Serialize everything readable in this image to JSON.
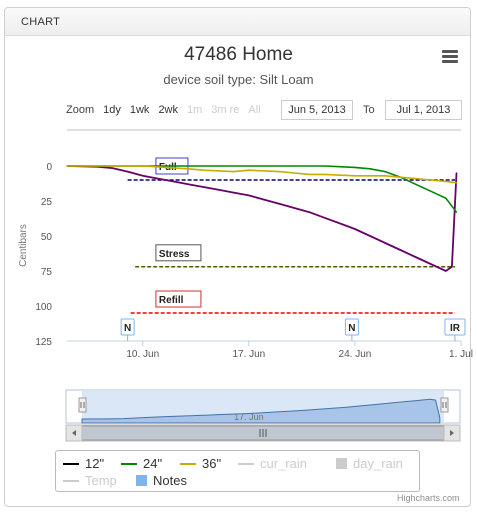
{
  "panel": {
    "header": "CHART"
  },
  "title": "47486 Home",
  "subtitle": "device soil type: Silt Loam",
  "range_selector": {
    "zoom_label": "Zoom",
    "buttons": [
      {
        "label": "1dy",
        "enabled": true
      },
      {
        "label": "1wk",
        "enabled": true
      },
      {
        "label": "2wk",
        "enabled": true
      },
      {
        "label": "1m",
        "enabled": false
      },
      {
        "label": "3m re",
        "enabled": false
      },
      {
        "label": "All",
        "enabled": false
      }
    ],
    "from_date": "Jun 5, 2013",
    "to_label": "To",
    "to_date": "Jul 1, 2013"
  },
  "chart_data": {
    "type": "line",
    "ylabel": "Centibars",
    "y_reversed": true,
    "ylim": [
      125,
      0
    ],
    "yticks": [
      0,
      25,
      50,
      75,
      100,
      125
    ],
    "xlim": [
      5,
      31
    ],
    "x_tick_positions": [
      10,
      17,
      24,
      31
    ],
    "xtick_labels": [
      "10. Jun",
      "17. Jun",
      "24. Jun",
      "1. Jul"
    ],
    "x_unit": "June 2013 day",
    "series": [
      {
        "name": "12\"",
        "color": "#660066",
        "x": [
          5,
          7,
          8,
          9,
          10,
          11,
          12,
          13,
          14,
          15,
          16,
          17,
          18,
          19,
          20,
          21,
          22,
          23,
          24,
          25,
          26,
          27,
          28,
          29,
          30,
          30.4,
          30.7
        ],
        "values": [
          0,
          0.5,
          1.5,
          4,
          7,
          9,
          11,
          13,
          15,
          17,
          19,
          21,
          24,
          27,
          30,
          33,
          37,
          41,
          45,
          50,
          55,
          60,
          65,
          70,
          75,
          72,
          5
        ]
      },
      {
        "name": "24\"",
        "color": "#008800",
        "x": [
          5,
          10,
          15,
          20,
          22,
          23,
          24,
          25,
          26,
          27,
          28,
          29,
          30,
          30.7
        ],
        "values": [
          0,
          0,
          0,
          0,
          0,
          0.5,
          1,
          2,
          4,
          8,
          13,
          18,
          23,
          33
        ]
      },
      {
        "name": "36\"",
        "color": "#ccaa00",
        "x": [
          5,
          10,
          13,
          14,
          16,
          17,
          19,
          20,
          21,
          22,
          24,
          26,
          27,
          28,
          29,
          30,
          30.7
        ],
        "values": [
          0,
          0,
          2,
          3,
          4,
          3,
          4,
          5,
          6,
          6,
          7,
          7,
          8,
          9,
          10,
          11,
          12
        ]
      }
    ],
    "plot_bands": [
      {
        "label": "Full",
        "value": 10,
        "color": "#000080",
        "box_color": "#4040cc"
      },
      {
        "label": "Stress",
        "value": 72,
        "color": "#555500",
        "box_color": "#555555"
      },
      {
        "label": "Refill",
        "value": 105,
        "color": "#ee0000",
        "box_color": "#cc3333"
      }
    ],
    "flags": [
      {
        "label": "N",
        "x": 9
      },
      {
        "label": "N",
        "x": 23.8
      },
      {
        "label": "IR",
        "x": 30.6
      }
    ],
    "navigator": {
      "x_label": "17. Jun"
    },
    "legend_placement": "bottom",
    "legend": [
      {
        "name": "12\"",
        "symbol": "line",
        "color": "#660066",
        "visible": true
      },
      {
        "name": "24\"",
        "symbol": "line",
        "color": "#008800",
        "visible": true
      },
      {
        "name": "36\"",
        "symbol": "line",
        "color": "#ccaa00",
        "visible": true
      },
      {
        "name": "cur_rain",
        "symbol": "line",
        "color": "#cccccc",
        "visible": false
      },
      {
        "name": "day_rain",
        "symbol": "box",
        "color": "#cccccc",
        "visible": false
      },
      {
        "name": "Temp",
        "symbol": "line",
        "color": "#cccccc",
        "visible": false
      },
      {
        "name": "Notes",
        "symbol": "box",
        "color": "#7cb5ec",
        "visible": true
      }
    ]
  },
  "credits": "Highcharts.com"
}
